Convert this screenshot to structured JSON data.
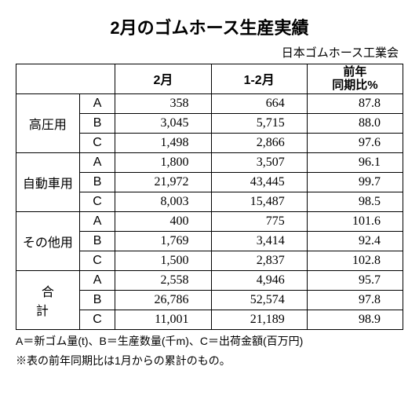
{
  "title": "2月のゴムホース生産実績",
  "subtitle": "日本ゴムホース工業会",
  "columns": {
    "month": "2月",
    "cum": "1-2月",
    "yoy_line1": "前年",
    "yoy_line2": "同期比%"
  },
  "subs": [
    "A",
    "B",
    "C"
  ],
  "categories": [
    {
      "name": "高圧用",
      "rows": [
        {
          "m": "358",
          "c": "664",
          "y": "87.8"
        },
        {
          "m": "3,045",
          "c": "5,715",
          "y": "88.0"
        },
        {
          "m": "1,498",
          "c": "2,866",
          "y": "97.6"
        }
      ]
    },
    {
      "name": "自動車用",
      "rows": [
        {
          "m": "1,800",
          "c": "3,507",
          "y": "96.1"
        },
        {
          "m": "21,972",
          "c": "43,445",
          "y": "99.7"
        },
        {
          "m": "8,003",
          "c": "15,487",
          "y": "98.5"
        }
      ]
    },
    {
      "name": "その他用",
      "rows": [
        {
          "m": "400",
          "c": "775",
          "y": "101.6"
        },
        {
          "m": "1,769",
          "c": "3,414",
          "y": "92.4"
        },
        {
          "m": "1,500",
          "c": "2,837",
          "y": "102.8"
        }
      ]
    },
    {
      "name": "合計",
      "rows": [
        {
          "m": "2,558",
          "c": "4,946",
          "y": "95.7"
        },
        {
          "m": "26,786",
          "c": "52,574",
          "y": "97.8"
        },
        {
          "m": "11,001",
          "c": "21,189",
          "y": "98.9"
        }
      ]
    }
  ],
  "legend1": "A＝新ゴム量(t)、B＝生産数量(千m)、C＝出荷金額(百万円)",
  "legend2": "※表の前年同期比は1月からの累計のもの。"
}
